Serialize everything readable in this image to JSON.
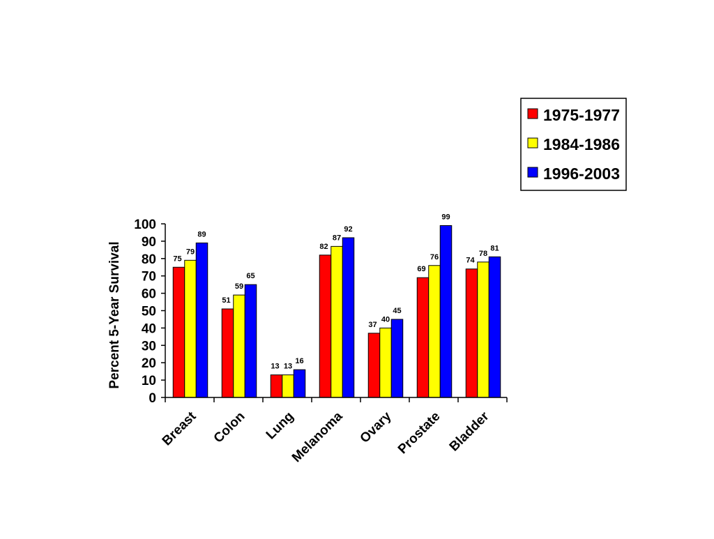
{
  "chart_data": {
    "type": "bar",
    "ylabel": "Percent 5-Year Survival",
    "ylim": [
      0,
      100
    ],
    "yticks": [
      0,
      10,
      20,
      30,
      40,
      50,
      60,
      70,
      80,
      90,
      100
    ],
    "categories": [
      "Breast",
      "Colon",
      "Lung",
      "Melanoma",
      "Ovary",
      "Prostate",
      "Bladder"
    ],
    "series": [
      {
        "name": "1975-1977",
        "color": "#ff0000",
        "values": [
          75,
          51,
          13,
          82,
          37,
          69,
          74
        ]
      },
      {
        "name": "1984-1986",
        "color": "#ffff00",
        "values": [
          79,
          59,
          13,
          87,
          40,
          76,
          78
        ]
      },
      {
        "name": "1996-2003",
        "color": "#0000ff",
        "values": [
          89,
          65,
          16,
          92,
          45,
          99,
          81
        ]
      }
    ],
    "grid": false,
    "legend_position": "top-right"
  }
}
